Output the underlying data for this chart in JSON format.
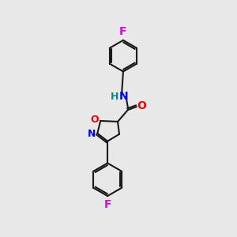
{
  "background_color": "#e8e8e8",
  "line_color": "#1a1a1a",
  "bond_width": 1.5,
  "atom_colors": {
    "F": "#dd00dd",
    "N": "#0000ee",
    "O": "#ee0000",
    "H": "#008888"
  },
  "font_size": 10,
  "xlim": [
    0,
    10
  ],
  "ylim": [
    0,
    15
  ]
}
